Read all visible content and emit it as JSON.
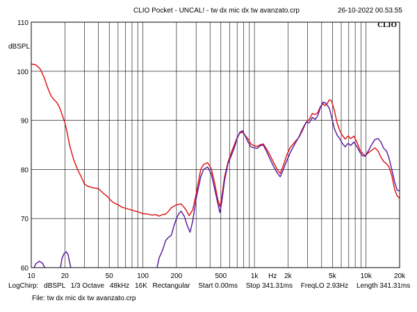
{
  "header": {
    "title": "CLIO Pocket - UNCAL! - tw dx mic dx tw avanzato.crp",
    "timestamp": "26-10-2022 00.53.55",
    "logo": "CLIO"
  },
  "footer": {
    "settings": {
      "mode": "LogChirp:",
      "unit": "dBSPL",
      "smoothing": "1/3 Octave",
      "rate": "48kHz",
      "size": "16K",
      "window": "Rectangular",
      "start": "Start 0.00ms",
      "stop": "Stop 341.31ms",
      "freqlo": "FreqLO 2.93Hz",
      "length": "Length 341.31ms"
    },
    "file": "File: tw dx mic dx tw avanzato.crp"
  },
  "chart_data": {
    "type": "line",
    "xscale": "log",
    "xlim": [
      10,
      20000
    ],
    "ylim": [
      60,
      110
    ],
    "grid": true,
    "ylabel": "dBSPL",
    "xlabel": "Hz",
    "xticks": [
      {
        "v": 10,
        "label": "10"
      },
      {
        "v": 20,
        "label": "20"
      },
      {
        "v": 50,
        "label": "50"
      },
      {
        "v": 100,
        "label": "100"
      },
      {
        "v": 200,
        "label": "200"
      },
      {
        "v": 500,
        "label": "500"
      },
      {
        "v": 1000,
        "label": "1k"
      },
      {
        "v": 2000,
        "label": "2k"
      },
      {
        "v": 5000,
        "label": "5k"
      },
      {
        "v": 10000,
        "label": "10k"
      },
      {
        "v": 20000,
        "label": "20k"
      }
    ],
    "yticks": [
      {
        "v": 60,
        "label": "60"
      },
      {
        "v": 70,
        "label": "70"
      },
      {
        "v": 80,
        "label": "80"
      },
      {
        "v": 90,
        "label": "90"
      },
      {
        "v": 100,
        "label": "100"
      },
      {
        "v": 110,
        "label": "110"
      }
    ],
    "colors": {
      "series1": "#e01818",
      "series2": "#5a1fa0",
      "grid": "#000000"
    },
    "series": [
      {
        "color": "#e01818",
        "points": [
          [
            10,
            101.5
          ],
          [
            11,
            101.3
          ],
          [
            12,
            100.5
          ],
          [
            13,
            98.8
          ],
          [
            14,
            96.7
          ],
          [
            15,
            95.0
          ],
          [
            16,
            94.2
          ],
          [
            17,
            93.6
          ],
          [
            18,
            92.5
          ],
          [
            19,
            91.0
          ],
          [
            20,
            89.5
          ],
          [
            21,
            87.5
          ],
          [
            22,
            85.0
          ],
          [
            24,
            82.0
          ],
          [
            26,
            80.0
          ],
          [
            28,
            78.5
          ],
          [
            30,
            77.0
          ],
          [
            32,
            76.6
          ],
          [
            35,
            76.3
          ],
          [
            40,
            76.1
          ],
          [
            44,
            75.2
          ],
          [
            48,
            74.5
          ],
          [
            52,
            73.6
          ],
          [
            55,
            73.2
          ],
          [
            60,
            72.8
          ],
          [
            65,
            72.3
          ],
          [
            70,
            72.1
          ],
          [
            80,
            71.7
          ],
          [
            90,
            71.4
          ],
          [
            100,
            71.0
          ],
          [
            110,
            70.9
          ],
          [
            120,
            70.7
          ],
          [
            130,
            70.8
          ],
          [
            140,
            70.5
          ],
          [
            150,
            70.8
          ],
          [
            160,
            70.9
          ],
          [
            170,
            71.5
          ],
          [
            180,
            72.2
          ],
          [
            200,
            72.8
          ],
          [
            220,
            73.0
          ],
          [
            240,
            72.0
          ],
          [
            260,
            70.6
          ],
          [
            280,
            71.8
          ],
          [
            300,
            75.0
          ],
          [
            330,
            80.0
          ],
          [
            350,
            81.0
          ],
          [
            380,
            81.4
          ],
          [
            410,
            80.2
          ],
          [
            440,
            77.2
          ],
          [
            470,
            73.8
          ],
          [
            490,
            72.4
          ],
          [
            510,
            74.5
          ],
          [
            540,
            78.5
          ],
          [
            580,
            81.5
          ],
          [
            620,
            83.4
          ],
          [
            660,
            85.0
          ],
          [
            700,
            86.5
          ],
          [
            740,
            87.4
          ],
          [
            780,
            87.6
          ],
          [
            820,
            87.0
          ],
          [
            870,
            86.3
          ],
          [
            930,
            85.2
          ],
          [
            1000,
            84.8
          ],
          [
            1060,
            84.7
          ],
          [
            1120,
            85.0
          ],
          [
            1200,
            85.2
          ],
          [
            1300,
            84.0
          ],
          [
            1400,
            82.6
          ],
          [
            1500,
            81.2
          ],
          [
            1600,
            80.0
          ],
          [
            1700,
            79.2
          ],
          [
            1800,
            80.6
          ],
          [
            1950,
            83.0
          ],
          [
            2100,
            84.5
          ],
          [
            2300,
            85.6
          ],
          [
            2500,
            86.5
          ],
          [
            2700,
            88.0
          ],
          [
            2900,
            89.6
          ],
          [
            3100,
            90.2
          ],
          [
            3300,
            91.4
          ],
          [
            3500,
            91.2
          ],
          [
            3700,
            91.6
          ],
          [
            3900,
            92.8
          ],
          [
            4100,
            93.4
          ],
          [
            4300,
            93.0
          ],
          [
            4500,
            93.5
          ],
          [
            4700,
            94.2
          ],
          [
            4900,
            94.0
          ],
          [
            5200,
            92.0
          ],
          [
            5500,
            89.5
          ],
          [
            5800,
            88.0
          ],
          [
            6100,
            87.0
          ],
          [
            6500,
            86.2
          ],
          [
            6900,
            86.8
          ],
          [
            7300,
            86.3
          ],
          [
            7800,
            86.8
          ],
          [
            8300,
            85.5
          ],
          [
            8800,
            84.0
          ],
          [
            9300,
            83.3
          ],
          [
            9800,
            82.8
          ],
          [
            10500,
            83.4
          ],
          [
            11200,
            83.9
          ],
          [
            12000,
            84.4
          ],
          [
            12800,
            83.8
          ],
          [
            13600,
            82.5
          ],
          [
            14400,
            81.6
          ],
          [
            15200,
            81.2
          ],
          [
            16000,
            80.6
          ],
          [
            17000,
            78.8
          ],
          [
            18000,
            76.0
          ],
          [
            19000,
            74.6
          ],
          [
            20000,
            74.2
          ]
        ]
      },
      {
        "color": "#5a1fa0",
        "segments": [
          [
            [
              10.6,
              60.0
            ],
            [
              11.0,
              60.8
            ],
            [
              11.8,
              61.3
            ],
            [
              12.6,
              60.9
            ],
            [
              13.2,
              60.0
            ]
          ],
          [
            [
              18.3,
              60.0
            ],
            [
              18.8,
              61.8
            ],
            [
              19.6,
              62.8
            ],
            [
              20.5,
              63.2
            ],
            [
              21.3,
              62.8
            ],
            [
              22.0,
              61.2
            ],
            [
              22.6,
              60.0
            ]
          ],
          [
            [
              134,
              60.0
            ],
            [
              140,
              62.0
            ],
            [
              150,
              63.5
            ],
            [
              160,
              65.5
            ],
            [
              170,
              66.2
            ],
            [
              180,
              66.6
            ],
            [
              190,
              68.5
            ],
            [
              200,
              70.0
            ],
            [
              210,
              71.0
            ],
            [
              220,
              71.5
            ],
            [
              235,
              70.5
            ],
            [
              250,
              68.6
            ],
            [
              265,
              67.2
            ],
            [
              280,
              69.5
            ],
            [
              300,
              74.0
            ],
            [
              330,
              78.5
            ],
            [
              350,
              80.0
            ],
            [
              380,
              80.5
            ],
            [
              410,
              79.2
            ],
            [
              440,
              76.0
            ],
            [
              470,
              73.0
            ],
            [
              490,
              71.2
            ],
            [
              510,
              73.5
            ],
            [
              540,
              77.8
            ],
            [
              580,
              81.2
            ],
            [
              620,
              82.8
            ],
            [
              660,
              84.4
            ],
            [
              700,
              86.3
            ],
            [
              740,
              87.6
            ],
            [
              780,
              87.9
            ],
            [
              820,
              87.0
            ],
            [
              870,
              85.7
            ],
            [
              930,
              84.6
            ],
            [
              1000,
              84.4
            ],
            [
              1060,
              84.3
            ],
            [
              1120,
              84.8
            ],
            [
              1200,
              85.0
            ],
            [
              1300,
              83.4
            ],
            [
              1400,
              81.8
            ],
            [
              1500,
              80.4
            ],
            [
              1600,
              79.3
            ],
            [
              1700,
              78.5
            ],
            [
              1800,
              79.8
            ],
            [
              1950,
              81.8
            ],
            [
              2100,
              83.5
            ],
            [
              2300,
              85.2
            ],
            [
              2500,
              86.6
            ],
            [
              2700,
              88.3
            ],
            [
              2900,
              89.6
            ],
            [
              3100,
              89.5
            ],
            [
              3300,
              90.6
            ],
            [
              3500,
              90.2
            ],
            [
              3700,
              91.0
            ],
            [
              3900,
              92.6
            ],
            [
              4100,
              93.7
            ],
            [
              4300,
              93.6
            ],
            [
              4500,
              93.1
            ],
            [
              4700,
              92.4
            ],
            [
              4900,
              90.8
            ],
            [
              5200,
              88.3
            ],
            [
              5500,
              87.0
            ],
            [
              5800,
              86.3
            ],
            [
              6100,
              85.4
            ],
            [
              6500,
              84.6
            ],
            [
              6900,
              85.3
            ],
            [
              7300,
              84.9
            ],
            [
              7800,
              85.6
            ],
            [
              8300,
              84.6
            ],
            [
              8800,
              83.5
            ],
            [
              9300,
              82.8
            ],
            [
              9800,
              82.7
            ],
            [
              10500,
              83.8
            ],
            [
              11200,
              85.0
            ],
            [
              12000,
              86.1
            ],
            [
              12800,
              86.3
            ],
            [
              13600,
              85.6
            ],
            [
              14400,
              84.3
            ],
            [
              15200,
              83.8
            ],
            [
              16000,
              82.5
            ],
            [
              17000,
              80.0
            ],
            [
              18000,
              77.5
            ],
            [
              19000,
              75.8
            ],
            [
              20000,
              75.6
            ]
          ]
        ]
      }
    ]
  }
}
